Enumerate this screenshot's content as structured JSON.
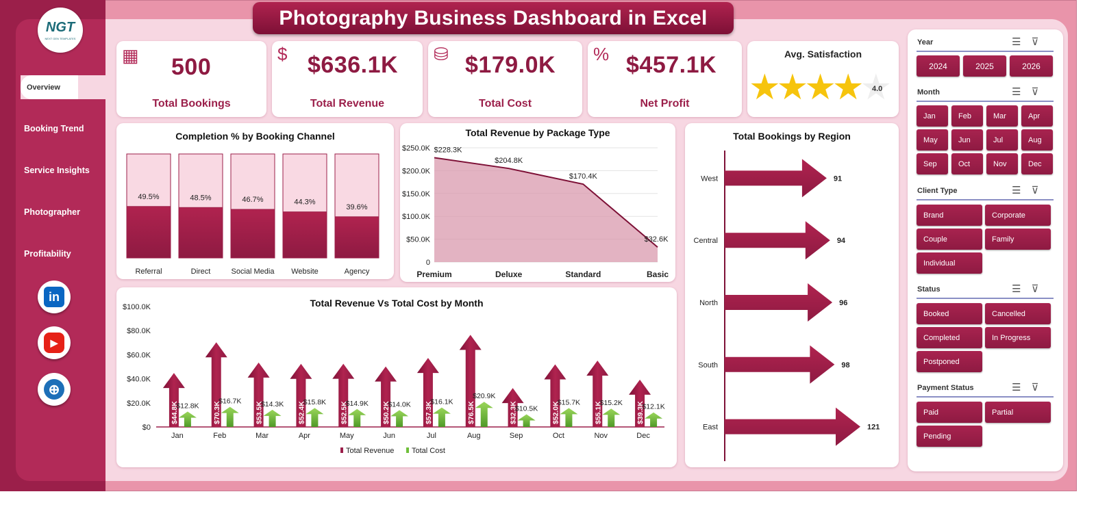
{
  "title": "Photography Business Dashboard in Excel",
  "logo": {
    "text": "NGT",
    "subtext": "NEXT GEN TEMPLATES"
  },
  "nav": {
    "items": [
      {
        "label": "Overview"
      },
      {
        "label": "Booking Trend"
      },
      {
        "label": "Service Insights"
      },
      {
        "label": "Photographer"
      },
      {
        "label": "Profitability"
      }
    ]
  },
  "social": {
    "linkedin": "in"
  },
  "kpis": [
    {
      "value": "500",
      "label": "Total Bookings",
      "icon": "bookings-icon"
    },
    {
      "value": "$636.1K",
      "label": "Total Revenue",
      "icon": "revenue-icon"
    },
    {
      "value": "$179.0K",
      "label": "Total Cost",
      "icon": "cost-icon"
    },
    {
      "value": "$457.1K",
      "label": "Net Profit",
      "icon": "profit-icon"
    }
  ],
  "satisfaction": {
    "title": "Avg. Satisfaction",
    "value": "4.0",
    "rating": 4.0,
    "max": 5
  },
  "colors": {
    "accent": "#9b1f4a",
    "cost": "#6fbf3a",
    "area": "#d99aad"
  },
  "chart_data": [
    {
      "type": "bar",
      "title": "Completion % by Booking Channel",
      "categories": [
        "Referral",
        "Direct",
        "Social Media",
        "Website",
        "Agency"
      ],
      "values": [
        49.5,
        48.5,
        46.7,
        44.3,
        39.6
      ],
      "labels": [
        "49.5%",
        "48.5%",
        "46.7%",
        "44.3%",
        "39.6%"
      ],
      "ylim": [
        0,
        100
      ]
    },
    {
      "type": "area",
      "title": "Total Revenue by Package Type",
      "categories": [
        "Premium",
        "Deluxe",
        "Standard",
        "Basic"
      ],
      "values": [
        228.3,
        204.8,
        170.4,
        32.6
      ],
      "labels": [
        "$228.3K",
        "$204.8K",
        "$170.4K",
        "$32.6K"
      ],
      "yticks": [
        "$250.0K",
        "$200.0K",
        "$150.0K",
        "$100.0K",
        "$50.0K",
        "0"
      ],
      "ylim": [
        0,
        250
      ]
    },
    {
      "type": "bar",
      "title": "Total Revenue Vs Total Cost by Month",
      "categories": [
        "Jan",
        "Feb",
        "Mar",
        "Apr",
        "May",
        "Jun",
        "Jul",
        "Aug",
        "Sep",
        "Oct",
        "Nov",
        "Dec"
      ],
      "series": [
        {
          "name": "Total Revenue",
          "values": [
            44.8,
            70.3,
            53.5,
            52.4,
            52.5,
            50.2,
            57.3,
            76.5,
            32.3,
            52.0,
            55.1,
            39.3
          ],
          "labels": [
            "$44.8K",
            "$70.3K",
            "$53.5K",
            "$52.4K",
            "$52.5K",
            "$50.2K",
            "$57.3K",
            "$76.5K",
            "$32.3K",
            "$52.0K",
            "$55.1K",
            "$39.3K"
          ]
        },
        {
          "name": "Total Cost",
          "values": [
            12.8,
            16.7,
            14.3,
            15.8,
            14.9,
            14.0,
            16.1,
            20.9,
            10.5,
            15.7,
            15.2,
            12.1
          ],
          "labels": [
            "$12.8K",
            "$16.7K",
            "$14.3K",
            "$15.8K",
            "$14.9K",
            "$14.0K",
            "$16.1K",
            "$20.9K",
            "$10.5K",
            "$15.7K",
            "$15.2K",
            "$12.1K"
          ]
        }
      ],
      "yticks": [
        "$100.0K",
        "$80.0K",
        "$60.0K",
        "$40.0K",
        "$20.0K",
        "$0"
      ],
      "ylim": [
        0,
        100
      ],
      "legend": "bottom"
    },
    {
      "type": "bar",
      "title": "Total Bookings by Region",
      "categories": [
        "West",
        "Central",
        "North",
        "South",
        "East"
      ],
      "values": [
        91,
        94,
        96,
        98,
        121
      ],
      "labels": [
        "91",
        "94",
        "96",
        "98",
        "121"
      ]
    }
  ],
  "filters": {
    "year": {
      "label": "Year",
      "options": [
        "2024",
        "2025",
        "2026"
      ]
    },
    "month": {
      "label": "Month",
      "options": [
        "Jan",
        "Feb",
        "Mar",
        "Apr",
        "May",
        "Jun",
        "Jul",
        "Aug",
        "Sep",
        "Oct",
        "Nov",
        "Dec"
      ]
    },
    "client_type": {
      "label": "Client Type",
      "options": [
        "Brand",
        "Corporate",
        "Couple",
        "Family",
        "Individual"
      ]
    },
    "status": {
      "label": "Status",
      "options": [
        "Booked",
        "Cancelled",
        "Completed",
        "In Progress",
        "Postponed"
      ]
    },
    "payment_status": {
      "label": "Payment Status",
      "options": [
        "Paid",
        "Partial",
        "Pending"
      ]
    }
  }
}
